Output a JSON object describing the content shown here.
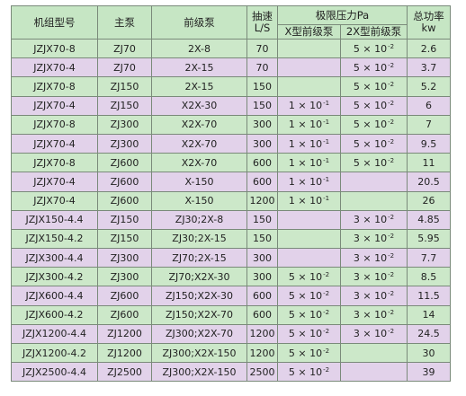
{
  "headers": {
    "model": "机组型号",
    "main_pump": "主泵",
    "backing_pump": "前级泵",
    "speed": "抽速",
    "speed_unit": "L/S",
    "ultimate_pressure": "极限压力Pa",
    "x_type": "X型前级泵",
    "x2_type": "2X型前级泵",
    "power": "总功率",
    "power_unit": "kw"
  },
  "row_colors": {
    "green": "#cce8c9",
    "purple": "#e2d2ea"
  },
  "rows": [
    {
      "model": "JZJX70-8",
      "main": "ZJ70",
      "backing": "2X-8",
      "speed": "70",
      "x_base": "",
      "x_exp": "",
      "x2_base": "5 × 10",
      "x2_exp": "-2",
      "power": "2.6",
      "color": "green"
    },
    {
      "model": "JZJX70-4",
      "main": "ZJ70",
      "backing": "2X-15",
      "speed": "70",
      "x_base": "",
      "x_exp": "",
      "x2_base": "5 × 10",
      "x2_exp": "-2",
      "power": "3.7",
      "color": "purple"
    },
    {
      "model": "JZJX70-8",
      "main": "ZJ150",
      "backing": "2X-15",
      "speed": "150",
      "x_base": "",
      "x_exp": "",
      "x2_base": "5 × 10",
      "x2_exp": "-2",
      "power": "5.2",
      "color": "green"
    },
    {
      "model": "JZJX70-4",
      "main": "ZJ150",
      "backing": "X2X-30",
      "speed": "150",
      "x_base": "1 × 10",
      "x_exp": "-1",
      "x2_base": "5 × 10",
      "x2_exp": "-2",
      "power": "6",
      "color": "purple"
    },
    {
      "model": "JZJX70-8",
      "main": "ZJ300",
      "backing": "X2X-70",
      "speed": "300",
      "x_base": "1 × 10",
      "x_exp": "-1",
      "x2_base": "5 × 10",
      "x2_exp": "-2",
      "power": "7",
      "color": "green"
    },
    {
      "model": "JZJX70-4",
      "main": "ZJ300",
      "backing": "X2X-70",
      "speed": "300",
      "x_base": "1 × 10",
      "x_exp": "-1",
      "x2_base": "5 × 10",
      "x2_exp": "-2",
      "power": "9.5",
      "color": "purple"
    },
    {
      "model": "JZJX70-8",
      "main": "ZJ600",
      "backing": "X2X-70",
      "speed": "600",
      "x_base": "1 × 10",
      "x_exp": "-1",
      "x2_base": "5 × 10",
      "x2_exp": "-2",
      "power": "11",
      "color": "green"
    },
    {
      "model": "JZJX70-4",
      "main": "ZJ600",
      "backing": "X-150",
      "speed": "600",
      "x_base": "1 × 10",
      "x_exp": "-1",
      "x2_base": "",
      "x2_exp": "",
      "power": "20.5",
      "color": "purple"
    },
    {
      "model": "JZJX70-4",
      "main": "ZJ600",
      "backing": "X-150",
      "speed": "1200",
      "x_base": "1 × 10",
      "x_exp": "-1",
      "x2_base": "",
      "x2_exp": "",
      "power": "26",
      "color": "green"
    },
    {
      "model": "JZJX150-4.4",
      "main": "ZJ150",
      "backing": "ZJ30;2X-8",
      "speed": "150",
      "x_base": "",
      "x_exp": "",
      "x2_base": "3 × 10",
      "x2_exp": "-2",
      "power": "4.85",
      "color": "purple"
    },
    {
      "model": "JZJX150-4.2",
      "main": "ZJ150",
      "backing": "ZJ30;2X-15",
      "speed": "150",
      "x_base": "",
      "x_exp": "",
      "x2_base": "3 × 10",
      "x2_exp": "-2",
      "power": "5.95",
      "color": "green"
    },
    {
      "model": "JZJX300-4.4",
      "main": "ZJ300",
      "backing": "ZJ70;2X-15",
      "speed": "300",
      "x_base": "",
      "x_exp": "",
      "x2_base": "3 × 10",
      "x2_exp": "-2",
      "power": "7.7",
      "color": "purple"
    },
    {
      "model": "JZJX300-4.2",
      "main": "ZJ300",
      "backing": "ZJ70;X2X-30",
      "speed": "300",
      "x_base": "5 × 10",
      "x_exp": "-2",
      "x2_base": "3 × 10",
      "x2_exp": "-2",
      "power": "8.5",
      "color": "green"
    },
    {
      "model": "JZJX600-4.4",
      "main": "ZJ600",
      "backing": "ZJ150;X2X-30",
      "speed": "600",
      "x_base": "5 × 10",
      "x_exp": "-2",
      "x2_base": "3 × 10",
      "x2_exp": "-2",
      "power": "11.5",
      "color": "purple"
    },
    {
      "model": "JZJX600-4.2",
      "main": "ZJ600",
      "backing": "ZJ150;X2X-70",
      "speed": "600",
      "x_base": "5 × 10",
      "x_exp": "-2",
      "x2_base": "3 × 10",
      "x2_exp": "-2",
      "power": "14",
      "color": "green"
    },
    {
      "model": "JZJX1200-4.4",
      "main": "ZJ1200",
      "backing": "ZJ300;X2X-70",
      "speed": "1200",
      "x_base": "5 × 10",
      "x_exp": "-2",
      "x2_base": "3 × 10",
      "x2_exp": "-2",
      "power": "24.5",
      "color": "purple"
    },
    {
      "model": "JZJX1200-4.2",
      "main": "ZJ1200",
      "backing": "ZJ300;X2X-150",
      "speed": "1200",
      "x_base": "5 × 10",
      "x_exp": "-2",
      "x2_base": "",
      "x2_exp": "",
      "power": "30",
      "color": "green"
    },
    {
      "model": "JZJX2500-4.4",
      "main": "ZJ2500",
      "backing": "ZJ300;X2X-150",
      "speed": "2500",
      "x_base": "5 × 10",
      "x_exp": "-2",
      "x2_base": "",
      "x2_exp": "",
      "power": "39",
      "color": "purple"
    }
  ]
}
